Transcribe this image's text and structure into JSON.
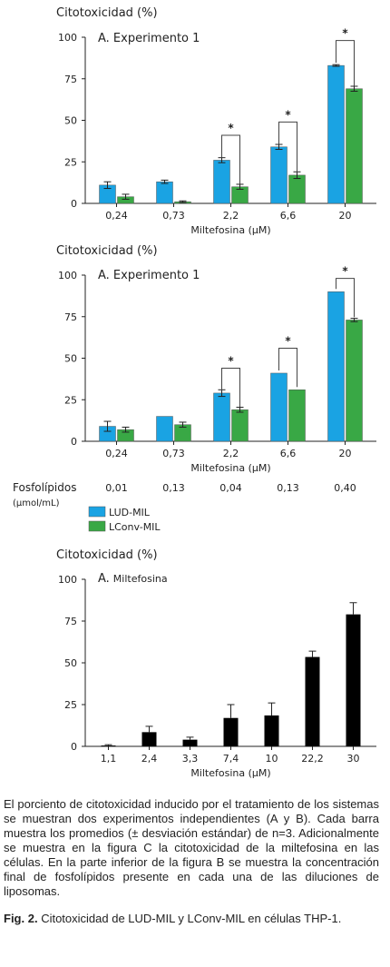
{
  "chart_data": [
    {
      "type": "bar",
      "ylabel": "Citotoxicidad (%)",
      "title": "A. Experimento 1",
      "xlabel": "Miltefosina (μM)",
      "categories": [
        "0,24",
        "0,73",
        "2,2",
        "6,6",
        "20"
      ],
      "ylim": [
        0,
        100
      ],
      "yticks": [
        0,
        25,
        50,
        75,
        100
      ],
      "series": [
        {
          "name": "LUD-MIL",
          "color": "#1aa3e3",
          "values": [
            11,
            13,
            26,
            34,
            83
          ],
          "errors": [
            2,
            1,
            1.5,
            1.5,
            0.5
          ]
        },
        {
          "name": "LConv-MIL",
          "color": "#39a845",
          "values": [
            4,
            1,
            10,
            17,
            69
          ],
          "errors": [
            1.5,
            0.5,
            1.5,
            2,
            1.5
          ]
        }
      ],
      "significance": [
        "",
        "",
        "*",
        "*",
        "*"
      ]
    },
    {
      "type": "bar",
      "ylabel": "Citotoxicidad (%)",
      "title": "A. Experimento 1",
      "xlabel": "Miltefosina (μM)",
      "categories": [
        "0,24",
        "0,73",
        "2,2",
        "6,6",
        "20"
      ],
      "ylim": [
        0,
        100
      ],
      "yticks": [
        0,
        25,
        50,
        75,
        100
      ],
      "series": [
        {
          "name": "LUD-MIL",
          "color": "#1aa3e3",
          "values": [
            9,
            15,
            29,
            41,
            90
          ],
          "errors": [
            3,
            0,
            2,
            0,
            0
          ]
        },
        {
          "name": "LConv-MIL",
          "color": "#39a845",
          "values": [
            7,
            10,
            19,
            31,
            73
          ],
          "errors": [
            1.5,
            1.5,
            1.5,
            0,
            1
          ]
        }
      ],
      "significance": [
        "",
        "",
        "*",
        "*",
        "*"
      ],
      "phospholipids": {
        "label": "Fosfolípidos",
        "unit": "(μmol/mL)",
        "values": [
          "0,01",
          "0,13",
          "0,04",
          "0,13",
          "0,40"
        ]
      },
      "legend": [
        {
          "name": "LUD-MIL",
          "color": "#1aa3e3"
        },
        {
          "name": "LConv-MIL",
          "color": "#39a845"
        }
      ]
    },
    {
      "type": "bar",
      "ylabel": "Citotoxicidad (%)",
      "title": "A.",
      "subtitle": "Miltefosina",
      "xlabel": "Miltefosina (μM)",
      "categories": [
        "1,1",
        "2,4",
        "3,3",
        "7,4",
        "10",
        "22,2",
        "30"
      ],
      "ylim": [
        0,
        100
      ],
      "yticks": [
        0,
        25,
        50,
        75,
        100
      ],
      "series": [
        {
          "name": "",
          "color": "#000000",
          "values": [
            0.5,
            8.5,
            4,
            17,
            18.5,
            53.5,
            79
          ],
          "errors": [
            0.5,
            3.5,
            1.5,
            8,
            7.5,
            3.5,
            7
          ]
        }
      ]
    }
  ],
  "caption": {
    "body": "El porciento de citotoxicidad inducido por el tratamiento de los sistemas se muestran dos experimentos independientes (A y B). Cada barra muestra los promedios (± desviación estándar) de n=3. Adicionalmente se muestra en la figura C la citotoxicidad de la miltefosina en las células. En la parte inferior de la figura B se muestra la concentración final de fosfolípidos presente en cada una de las diluciones de liposomas.",
    "fig_label": "Fig. 2.",
    "fig_text": "Citotoxicidad de LUD-MIL y LConv-MIL en células THP-1."
  }
}
